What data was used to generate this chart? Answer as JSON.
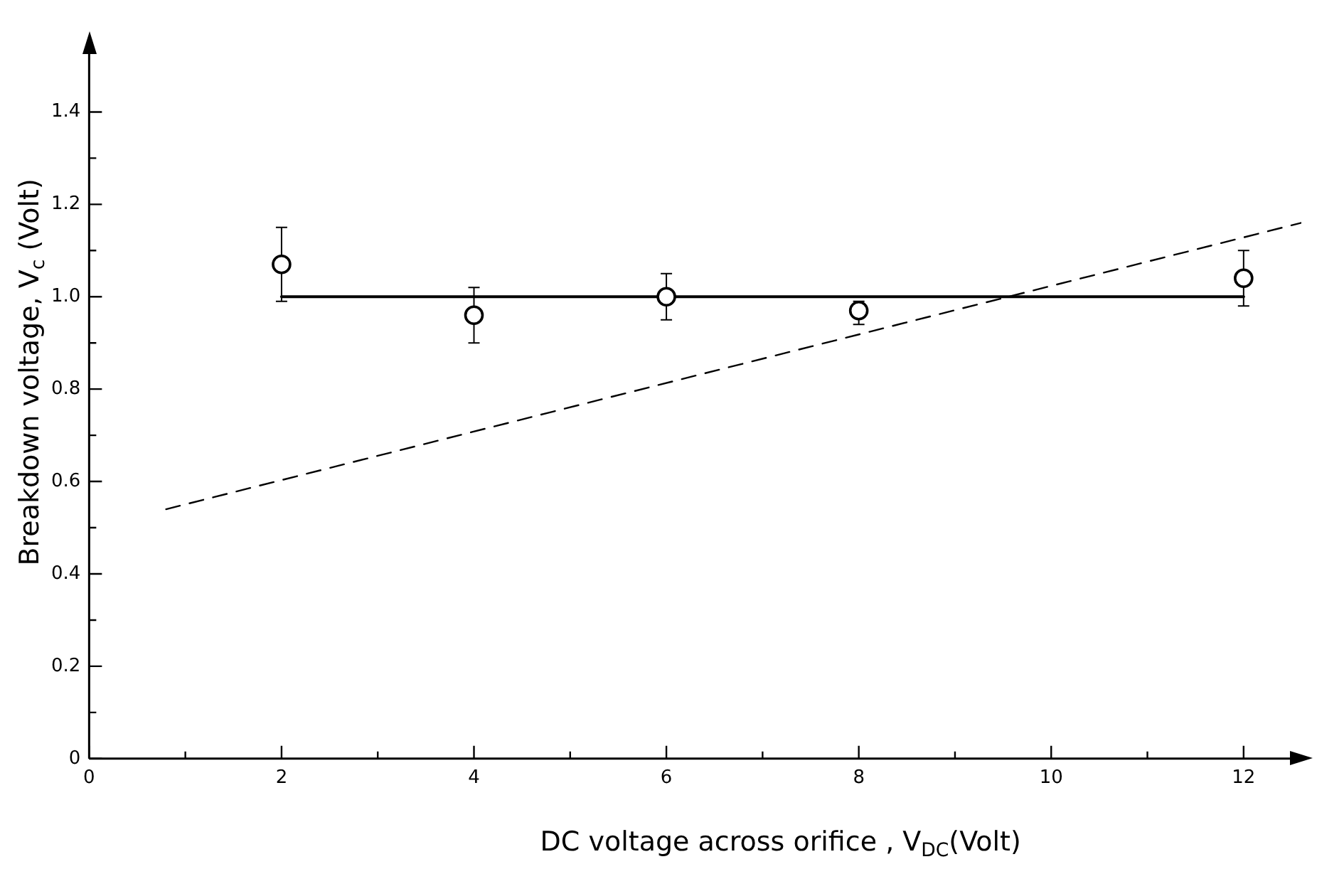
{
  "chart_data": {
    "type": "scatter",
    "xlabel": "DC voltage across orifice , V$_{DC}$(Volt)",
    "ylabel": "Breakdown voltage, V$_{c}$ (Volt)",
    "xlim": [
      0,
      12.6
    ],
    "ylim": [
      0,
      1.55
    ],
    "xticks": [
      0,
      {
        "value": 1,
        "label": null
      },
      2,
      {
        "value": 3,
        "label": null
      },
      4,
      {
        "value": 5,
        "label": null
      },
      6,
      {
        "value": 7,
        "label": null
      },
      8,
      {
        "value": 9,
        "label": null
      },
      10,
      {
        "value": 11,
        "label": null
      },
      12
    ],
    "yticks": [
      0,
      {
        "value": 0.1,
        "label": null
      },
      0.2,
      {
        "value": 0.3,
        "label": null
      },
      0.4,
      {
        "value": 0.5,
        "label": null
      },
      0.6,
      {
        "value": 0.7,
        "label": null
      },
      0.8,
      {
        "value": 0.9,
        "label": null
      },
      {
        "value": 1.0,
        "label": "1.0"
      },
      {
        "value": 1.1,
        "label": null
      },
      1.2,
      {
        "value": 1.3,
        "label": null
      },
      1.4
    ],
    "grid": false,
    "legend": false,
    "marker": "circle",
    "series": [
      {
        "type": "scatter",
        "color": "#000000",
        "x": [
          2,
          4,
          6,
          8,
          12
        ],
        "values": [
          1.07,
          0.96,
          1.0,
          0.97,
          1.04
        ],
        "errors": [
          [
            0.99,
            1.15
          ],
          [
            0.9,
            1.02
          ],
          [
            0.95,
            1.05
          ],
          [
            0.94,
            0.99
          ],
          [
            0.98,
            1.1
          ]
        ]
      },
      {
        "type": "line",
        "color": "#000000",
        "marker": "none",
        "line_style": "solid",
        "x": [
          2,
          12
        ],
        "values": [
          1.0,
          1.0
        ]
      },
      {
        "type": "line",
        "color": "#000000",
        "marker": "none",
        "line_style": "dashed",
        "x": [
          0.8,
          12.6
        ],
        "values": [
          0.54,
          1.16
        ]
      }
    ]
  }
}
